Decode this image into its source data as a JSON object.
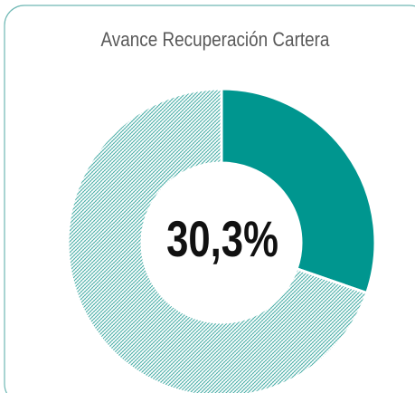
{
  "chart_data": {
    "type": "donut",
    "title": "Avance Recuperación  Cartera",
    "values": [
      30.3,
      69.7
    ],
    "value_labels": [
      "30,3%",
      null
    ],
    "colors": [
      "#00968f",
      "#00968f"
    ],
    "patterns": [
      "solid",
      "hatch"
    ]
  }
}
